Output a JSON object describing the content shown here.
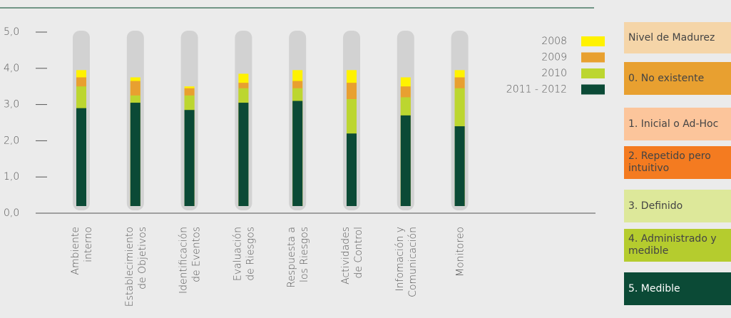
{
  "chart_data": {
    "type": "bar",
    "categories": [
      [
        "Ambiente",
        "interno"
      ],
      [
        "Establecimiento",
        "de Objetivos"
      ],
      [
        "Identificación",
        "de Eventos"
      ],
      [
        "Evaluación",
        "de Riesgos"
      ],
      [
        "Respuesta a",
        "los Riesgos"
      ],
      [
        "Actividades",
        "de Control"
      ],
      [
        "Infomación y",
        "Comunicación"
      ],
      [
        "Monitoreo"
      ]
    ],
    "series": [
      {
        "name": "2008",
        "color": "#fff200",
        "values": [
          3.95,
          3.75,
          3.5,
          3.85,
          3.95,
          3.95,
          3.75,
          3.95
        ]
      },
      {
        "name": "2009",
        "color": "#e8a030",
        "values": [
          3.75,
          3.65,
          3.45,
          3.6,
          3.65,
          3.6,
          3.5,
          3.75
        ]
      },
      {
        "name": "2010",
        "color": "#bcd630",
        "values": [
          3.5,
          3.25,
          3.25,
          3.45,
          3.45,
          3.15,
          3.2,
          3.45
        ]
      },
      {
        "name": "2011 - 2012",
        "color": "#0b4a36",
        "values": [
          2.9,
          3.05,
          2.85,
          3.05,
          3.1,
          2.2,
          2.7,
          2.4
        ]
      }
    ],
    "ylim": [
      0,
      5
    ],
    "yticks": [
      {
        "value": 0,
        "label": "0,0"
      },
      {
        "value": 1,
        "label": "1,0"
      },
      {
        "value": 2,
        "label": "2,0"
      },
      {
        "value": 3,
        "label": "3,0"
      },
      {
        "value": 4,
        "label": "4,0"
      },
      {
        "value": 5,
        "label": "5,0"
      }
    ]
  },
  "maturity_panel": {
    "title": "Nivel de Madurez",
    "title_color": "#f5d5a8",
    "levels": [
      {
        "label": "0. No existente",
        "color": "#e8a030"
      },
      {
        "label": "1. Inicial o Ad-Hoc",
        "color": "#fcc59b"
      },
      {
        "label": "2. Repetido pero intuitivo",
        "color": "#f47b20"
      },
      {
        "label": "3. Definido",
        "color": "#dde89a"
      },
      {
        "label": "4. Administrado y medible",
        "color": "#b5cc2e"
      },
      {
        "label": "5. Medible",
        "color": "#0b4a36"
      }
    ]
  }
}
